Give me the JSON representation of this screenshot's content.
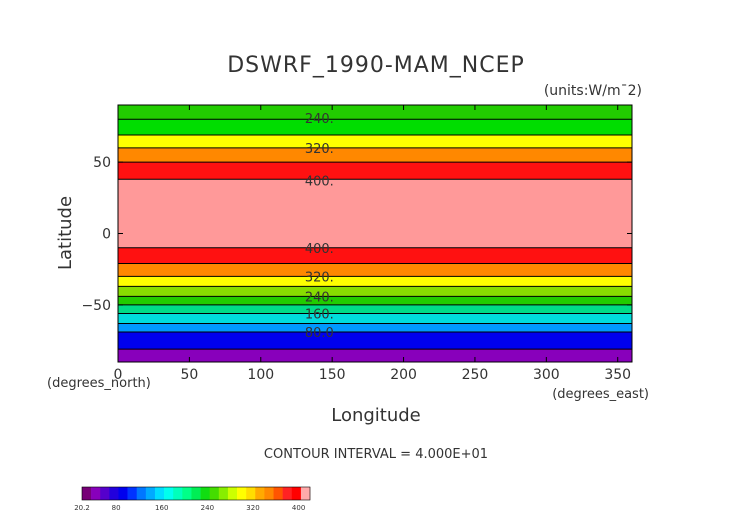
{
  "chart_data": {
    "type": "heatmap",
    "title": "DSWRF_1990-MAM_NCEP",
    "units_label": "(units:W/m¯2)",
    "xlabel": "Longitude",
    "ylabel": "Latitude",
    "x_unit_label": "(degrees_east)",
    "y_unit_label": "(degrees_north)",
    "xlim": [
      0,
      360
    ],
    "ylim": [
      -90,
      90
    ],
    "x_ticks": [
      0,
      50,
      100,
      150,
      200,
      250,
      300,
      350
    ],
    "y_ticks": [
      50,
      0,
      -50
    ],
    "contour_interval_text": "CONTOUR INTERVAL = 4.000E+01",
    "bands": [
      {
        "lat_min": 80,
        "lat_max": 90,
        "color": "#22cc00"
      },
      {
        "lat_min": 69,
        "lat_max": 80,
        "color": "#00dd00"
      },
      {
        "lat_min": 60,
        "lat_max": 69,
        "color": "#ffff00"
      },
      {
        "lat_min": 50,
        "lat_max": 60,
        "color": "#ff8800"
      },
      {
        "lat_min": 38,
        "lat_max": 50,
        "color": "#ff1111"
      },
      {
        "lat_min": -10,
        "lat_max": 38,
        "color": "#ff9999"
      },
      {
        "lat_min": -21,
        "lat_max": -10,
        "color": "#ff1111"
      },
      {
        "lat_min": -30,
        "lat_max": -21,
        "color": "#ff8800"
      },
      {
        "lat_min": -37,
        "lat_max": -30,
        "color": "#ffff00"
      },
      {
        "lat_min": -44,
        "lat_max": -37,
        "color": "#88dd00"
      },
      {
        "lat_min": -50,
        "lat_max": -44,
        "color": "#22cc00"
      },
      {
        "lat_min": -56,
        "lat_max": -50,
        "color": "#00dd88"
      },
      {
        "lat_min": -63,
        "lat_max": -56,
        "color": "#00dddd"
      },
      {
        "lat_min": -69,
        "lat_max": -63,
        "color": "#0099ff"
      },
      {
        "lat_min": -81,
        "lat_max": -69,
        "color": "#0000ee"
      },
      {
        "lat_min": -90,
        "lat_max": -81,
        "color": "#8800bb"
      }
    ],
    "contour_labels": [
      {
        "text": "240.",
        "lon": 120,
        "lat": 81
      },
      {
        "text": "320.",
        "lon": 120,
        "lat": 60
      },
      {
        "text": "400.",
        "lon": 120,
        "lat": 37
      },
      {
        "text": "400.",
        "lon": 120,
        "lat": -10
      },
      {
        "text": "320.",
        "lon": 120,
        "lat": -30
      },
      {
        "text": "240.",
        "lon": 120,
        "lat": -44
      },
      {
        "text": "160.",
        "lon": 120,
        "lat": -56
      },
      {
        "text": "80.0",
        "lon": 120,
        "lat": -69
      }
    ],
    "colorbar": {
      "colors": [
        "#770077",
        "#8800bb",
        "#5500cc",
        "#2200dd",
        "#0000ee",
        "#0033ff",
        "#0077ff",
        "#00aaff",
        "#00ddff",
        "#00ffee",
        "#00ffbb",
        "#00ff88",
        "#00ee55",
        "#11dd11",
        "#44dd00",
        "#88ee00",
        "#ccff00",
        "#ffff00",
        "#ffdd00",
        "#ffaa00",
        "#ff8800",
        "#ff5500",
        "#ff2222",
        "#ff0000",
        "#ffaaaa"
      ],
      "min": 20.2,
      "max": 420,
      "labels": [
        {
          "text": "20.2",
          "value": 20.2
        },
        {
          "text": "80",
          "value": 80
        },
        {
          "text": "160",
          "value": 160
        },
        {
          "text": "240",
          "value": 240
        },
        {
          "text": "320",
          "value": 320
        },
        {
          "text": "400",
          "value": 400
        }
      ]
    }
  }
}
